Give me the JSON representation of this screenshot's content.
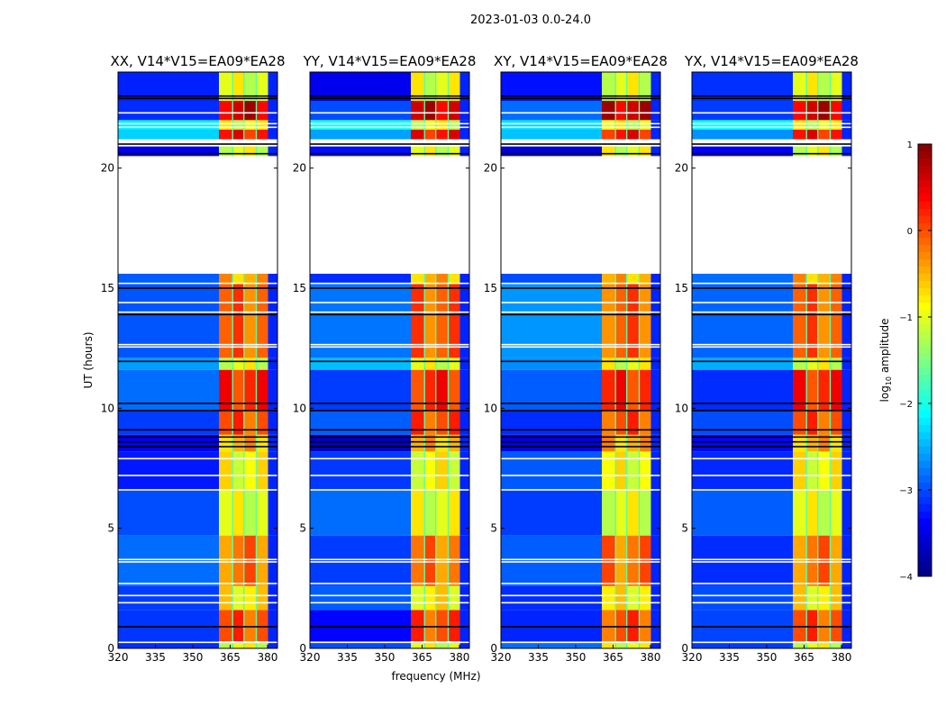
{
  "chart_data": {
    "type": "heatmap",
    "suptitle": "2023-01-03 0.0-24.0",
    "xlabel": "frequency (MHz)",
    "ylabel": "UT (hours)",
    "xlim": [
      320,
      384
    ],
    "ylim": [
      0,
      24
    ],
    "xticks": [
      "320",
      "335",
      "350",
      "365",
      "380"
    ],
    "xtick_values": [
      320,
      335,
      350,
      365,
      380
    ],
    "yticks": [
      "0",
      "5",
      "10",
      "15",
      "20"
    ],
    "ytick_values": [
      0,
      5,
      10,
      15,
      20
    ],
    "panels": [
      {
        "title": "XX, V14*V15=EA09*EA28"
      },
      {
        "title": "YY, V14*V15=EA09*EA28"
      },
      {
        "title": "XY, V14*V15=EA09*EA28"
      },
      {
        "title": "YX, V14*V15=EA09*EA28"
      }
    ],
    "band_edges_mhz": [
      360.5,
      366,
      370.5,
      375.5,
      380.2
    ],
    "segments_hours_bg_band": [
      [
        0.0,
        0.3,
        -3.0,
        -1.0
      ],
      [
        0.3,
        1.6,
        -3.2,
        0.0
      ],
      [
        1.6,
        2.6,
        -3.0,
        -0.8
      ],
      [
        2.6,
        4.7,
        -3.0,
        -0.2
      ],
      [
        4.7,
        6.6,
        -3.0,
        -1.0
      ],
      [
        6.6,
        8.2,
        -3.1,
        -0.9
      ],
      [
        8.2,
        8.9,
        -3.5,
        -0.5
      ],
      [
        8.9,
        9.9,
        -3.0,
        0.0
      ],
      [
        9.9,
        11.6,
        -3.0,
        0.2
      ],
      [
        11.6,
        12.1,
        -2.6,
        -1.0
      ],
      [
        12.1,
        15.2,
        -2.8,
        -0.1
      ],
      [
        15.2,
        15.6,
        -3.0,
        -0.5
      ],
      [
        20.5,
        20.9,
        -3.4,
        -1.0
      ],
      [
        21.2,
        21.6,
        -2.5,
        0.3
      ],
      [
        21.6,
        22.0,
        -2.2,
        -1.0
      ],
      [
        22.0,
        22.8,
        -3.0,
        0.6
      ],
      [
        22.8,
        24.0,
        -3.3,
        -1.0
      ]
    ],
    "white_lines_hours": [
      0.25,
      1.9,
      2.2,
      2.7,
      3.6,
      3.7,
      6.6,
      7.2,
      7.9,
      12.55,
      12.65,
      14.0,
      14.4,
      15.2,
      21.7,
      21.85,
      22.3
    ],
    "black_lines_hours": [
      0.9,
      8.4,
      8.6,
      8.8,
      9.1,
      9.9,
      10.2,
      11.95,
      13.9,
      15.0,
      20.6,
      21.0,
      22.9,
      23.0
    ],
    "colorbar": {
      "label": "log",
      "label_sub": "10",
      "label_suffix": " amplitude",
      "range": [
        -4,
        1
      ],
      "ticks": [
        "1",
        "0",
        "−1",
        "−2",
        "−3",
        "−4"
      ],
      "tick_values": [
        1,
        0,
        -1,
        -2,
        -3,
        -4
      ],
      "colormap": "jet"
    }
  }
}
